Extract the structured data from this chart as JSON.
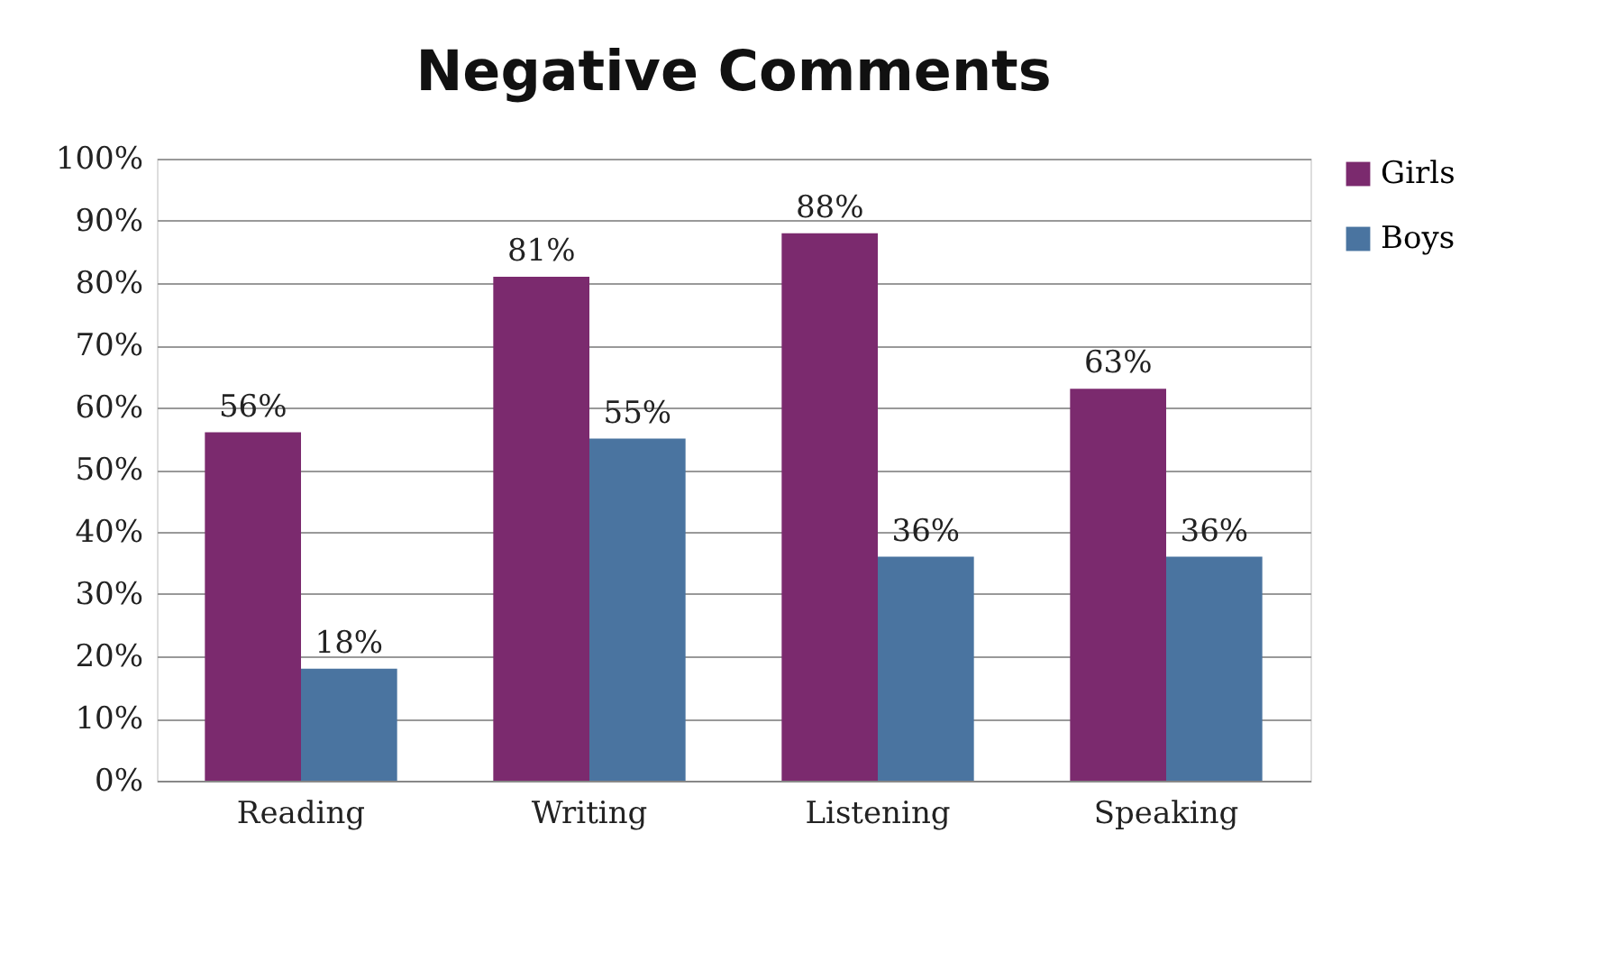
{
  "chart_data": {
    "type": "bar",
    "title": "Negative Comments",
    "categories": [
      "Reading",
      "Writing",
      "Listening",
      "Speaking"
    ],
    "series": [
      {
        "name": "Girls",
        "color": "#7b2a6e",
        "values": [
          56,
          81,
          88,
          63
        ],
        "value_labels": [
          "56%",
          "81%",
          "88%",
          "63%"
        ]
      },
      {
        "name": "Boys",
        "color": "#4a74a0",
        "values": [
          18,
          55,
          36,
          36
        ],
        "value_labels": [
          "18%",
          "55%",
          "36%",
          "36%"
        ]
      }
    ],
    "ylim": [
      0,
      100
    ],
    "yticks": [
      {
        "value": 0,
        "label": "0%"
      },
      {
        "value": 10,
        "label": "10%"
      },
      {
        "value": 20,
        "label": "20%"
      },
      {
        "value": 30,
        "label": "30%"
      },
      {
        "value": 40,
        "label": "40%"
      },
      {
        "value": 50,
        "label": "50%"
      },
      {
        "value": 60,
        "label": "60%"
      },
      {
        "value": 70,
        "label": "70%"
      },
      {
        "value": 80,
        "label": "80%"
      },
      {
        "value": 90,
        "label": "90%"
      },
      {
        "value": 100,
        "label": "100%"
      }
    ],
    "grid": "y",
    "legend": "right"
  }
}
